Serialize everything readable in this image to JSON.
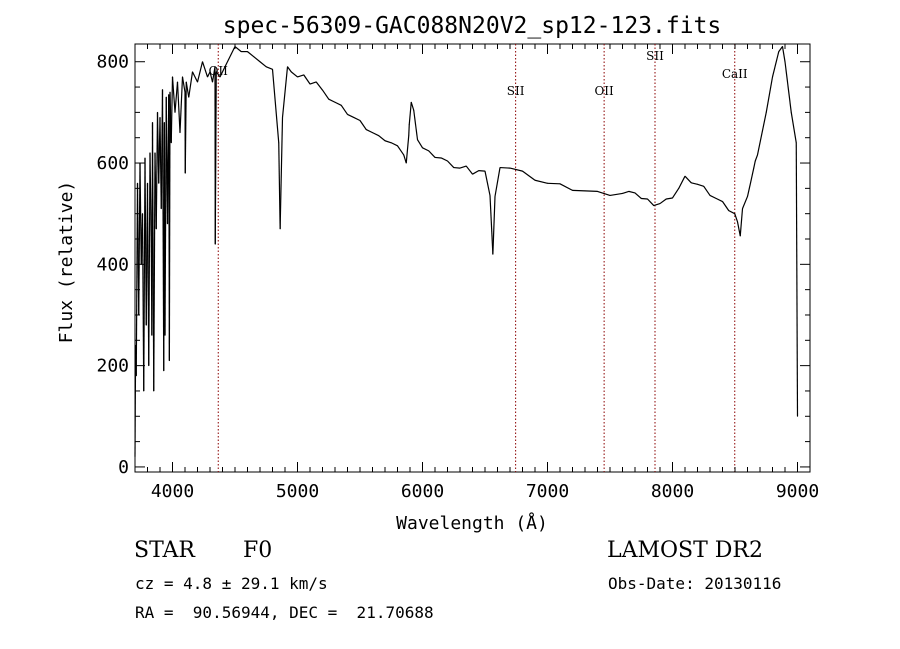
{
  "chart_data": {
    "type": "line",
    "title": "spec-56309-GAC088N20V2_sp12-123.fits",
    "xlabel": "Wavelength (Å)",
    "ylabel": "Flux (relative)",
    "xlim": [
      3700,
      9100
    ],
    "ylim": [
      -10,
      835
    ],
    "x_ticks": [
      4000,
      5000,
      6000,
      7000,
      8000,
      9000
    ],
    "y_ticks": [
      0,
      200,
      400,
      600,
      800
    ],
    "grid": false,
    "series": [
      {
        "x": [
          3700,
          3705,
          3710,
          3720,
          3730,
          3740,
          3750,
          3760,
          3770,
          3780,
          3790,
          3800,
          3810,
          3820,
          3830,
          3835,
          3840,
          3850,
          3860,
          3870,
          3880,
          3890,
          3900,
          3910,
          3920,
          3930,
          3935,
          3940,
          3950,
          3960,
          3970,
          3975,
          3980,
          3990,
          4000,
          4020,
          4040,
          4060,
          4080,
          4100,
          4102,
          4110,
          4130,
          4160,
          4200,
          4240,
          4280,
          4300,
          4320,
          4340,
          4342,
          4350,
          4380,
          4420,
          4460,
          4500,
          4550,
          4600,
          4650,
          4700,
          4750,
          4800,
          4850,
          4861,
          4880,
          4920,
          4950,
          5000,
          5050,
          5100,
          5150,
          5200,
          5250,
          5300,
          5350,
          5400,
          5450,
          5500,
          5550,
          5600,
          5650,
          5700,
          5750,
          5800,
          5850,
          5870,
          5890,
          5894,
          5910,
          5930,
          5960,
          6000,
          6050,
          6100,
          6150,
          6200,
          6250,
          6300,
          6350,
          6400,
          6450,
          6500,
          6540,
          6563,
          6580,
          6620,
          6700,
          6800,
          6900,
          7000,
          7100,
          7200,
          7300,
          7400,
          7500,
          7600,
          7650,
          7700,
          7750,
          7800,
          7850,
          7900,
          7950,
          8000,
          8050,
          8100,
          8150,
          8200,
          8250,
          8300,
          8350,
          8400,
          8450,
          8498,
          8520,
          8542,
          8560,
          8600,
          8620,
          8650,
          8662,
          8680,
          8700,
          8750,
          8800,
          8850,
          8880,
          8900,
          8950,
          8990,
          9000
        ],
        "values": [
          20,
          240,
          180,
          560,
          300,
          600,
          400,
          500,
          150,
          610,
          280,
          560,
          200,
          620,
          450,
          260,
          680,
          150,
          620,
          470,
          700,
          560,
          690,
          510,
          745,
          190,
          680,
          260,
          730,
          480,
          735,
          210,
          740,
          640,
          770,
          700,
          760,
          660,
          770,
          740,
          580,
          760,
          730,
          780,
          760,
          800,
          770,
          780,
          760,
          790,
          440,
          780,
          770,
          790,
          810,
          830,
          820,
          820,
          810,
          800,
          790,
          785,
          640,
          470,
          690,
          790,
          780,
          770,
          770,
          760,
          760,
          740,
          730,
          720,
          710,
          700,
          690,
          680,
          670,
          660,
          650,
          648,
          640,
          630,
          620,
          600,
          650,
          680,
          720,
          700,
          650,
          630,
          620,
          615,
          610,
          600,
          595,
          590,
          590,
          582,
          585,
          580,
          540,
          420,
          530,
          595,
          590,
          580,
          570,
          560,
          555,
          550,
          545,
          540,
          540,
          540,
          540,
          545,
          530,
          525,
          520,
          520,
          525,
          535,
          550,
          570,
          565,
          558,
          550,
          540,
          530,
          520,
          510,
          500,
          480,
          460,
          510,
          530,
          560,
          590,
          600,
          620,
          640,
          700,
          770,
          820,
          830,
          800,
          700,
          640,
          100
        ]
      }
    ],
    "annotations": [
      {
        "label": "OII",
        "x": 4366
      },
      {
        "label": "SII",
        "x": 6745
      },
      {
        "label": "OII",
        "x": 7453
      },
      {
        "label": "SII",
        "x": 7860
      },
      {
        "label": "CaII",
        "x": 8498
      }
    ]
  },
  "info": {
    "object_class": "STAR",
    "subclass": "F0",
    "survey": "LAMOST DR2",
    "redshift": "cz = 4.8 ± 29.1 km/s",
    "obs_date": "Obs-Date: 20130116",
    "coordinates": "RA =  90.56944, DEC =  21.70688"
  }
}
